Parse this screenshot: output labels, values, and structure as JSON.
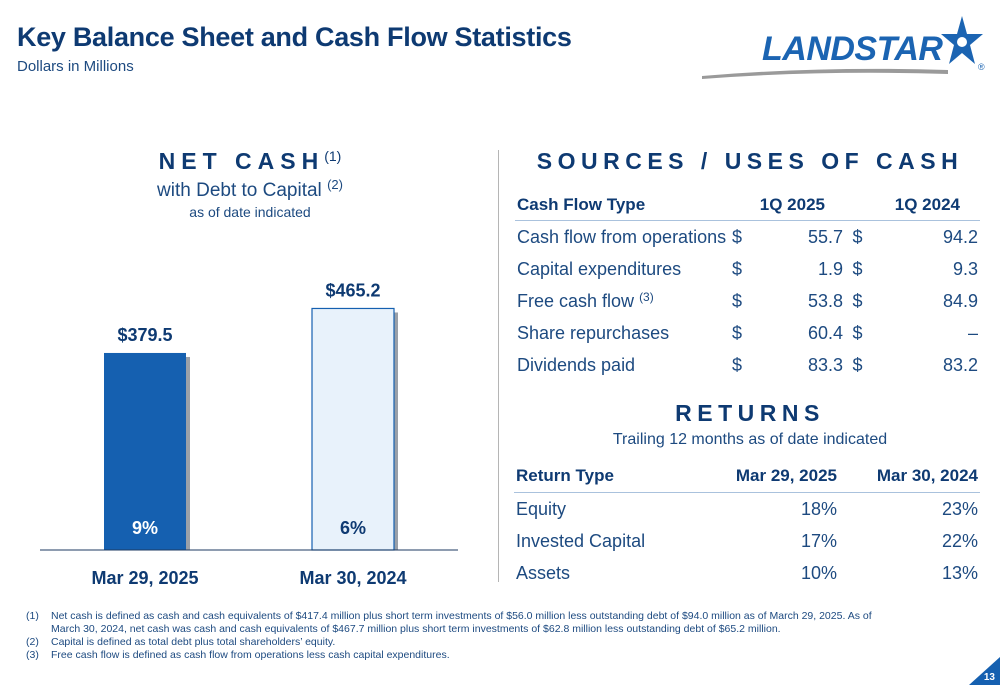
{
  "header": {
    "title": "Key Balance Sheet and Cash Flow Statistics",
    "subtitle": "Dollars in Millions",
    "logo_text": "LANDSTAR",
    "logo_reg": "®"
  },
  "net_cash": {
    "title": "NET CASH",
    "title_note": "(1)",
    "subtitle": "with Debt to Capital",
    "subtitle_note": "(2)",
    "as_of": "as of date indicated"
  },
  "chart_data": {
    "type": "bar",
    "categories": [
      "Mar 29, 2025",
      "Mar 30, 2024"
    ],
    "values": [
      379.5,
      465.2
    ],
    "value_labels": [
      "$379.5",
      "$465.2"
    ],
    "debt_to_capital_labels": [
      "9%",
      "6%"
    ],
    "debt_to_capital": [
      9,
      6
    ],
    "colors": [
      "#1560b0",
      "#e8f2fb"
    ],
    "ylim": [
      0,
      500
    ]
  },
  "sources_uses": {
    "title": "SOURCES / USES OF CASH",
    "headers": [
      "Cash Flow Type",
      "1Q 2025",
      "1Q 2024"
    ],
    "rows": [
      {
        "label": "Cash flow from operations",
        "note": "",
        "cur1": "$",
        "v1": "55.7",
        "cur2": "$",
        "v2": "94.2"
      },
      {
        "label": "Capital expenditures",
        "note": "",
        "cur1": "$",
        "v1": "1.9",
        "cur2": "$",
        "v2": "9.3"
      },
      {
        "label": "Free cash flow",
        "note": "(3)",
        "cur1": "$",
        "v1": "53.8",
        "cur2": "$",
        "v2": "84.9"
      },
      {
        "label": "Share repurchases",
        "note": "",
        "cur1": "$",
        "v1": "60.4",
        "cur2": "$",
        "v2": "–"
      },
      {
        "label": "Dividends paid",
        "note": "",
        "cur1": "$",
        "v1": "83.3",
        "cur2": "$",
        "v2": "83.2"
      }
    ]
  },
  "returns": {
    "title": "RETURNS",
    "subtitle": "Trailing 12 months as of date indicated",
    "headers": [
      "Return Type",
      "Mar 29, 2025",
      "Mar 30, 2024"
    ],
    "rows": [
      {
        "label": "Equity",
        "v1": "18%",
        "v2": "23%"
      },
      {
        "label": "Invested Capital",
        "v1": "17%",
        "v2": "22%"
      },
      {
        "label": "Assets",
        "v1": "10%",
        "v2": "13%"
      }
    ]
  },
  "footnotes": [
    {
      "num": "(1)",
      "text": "Net cash is defined as cash and cash equivalents of $417.4 million plus short term investments of $56.0 million less outstanding debt of $94.0 million as of March 29, 2025. As of March 30, 2024, net cash was cash and cash equivalents of $467.7 million plus short term investments of $62.8 million less outstanding debt of $65.2 million."
    },
    {
      "num": "(2)",
      "text": "Capital is defined as total debt plus total shareholders’ equity."
    },
    {
      "num": "(3)",
      "text": "Free cash flow is defined as cash flow from operations less cash capital expenditures."
    }
  ],
  "page_number": "13",
  "colors": {
    "navy": "#0e3a72",
    "brand_blue": "#1b64b2",
    "bar_dark": "#1560b0",
    "bar_light": "#e8f2fb"
  }
}
